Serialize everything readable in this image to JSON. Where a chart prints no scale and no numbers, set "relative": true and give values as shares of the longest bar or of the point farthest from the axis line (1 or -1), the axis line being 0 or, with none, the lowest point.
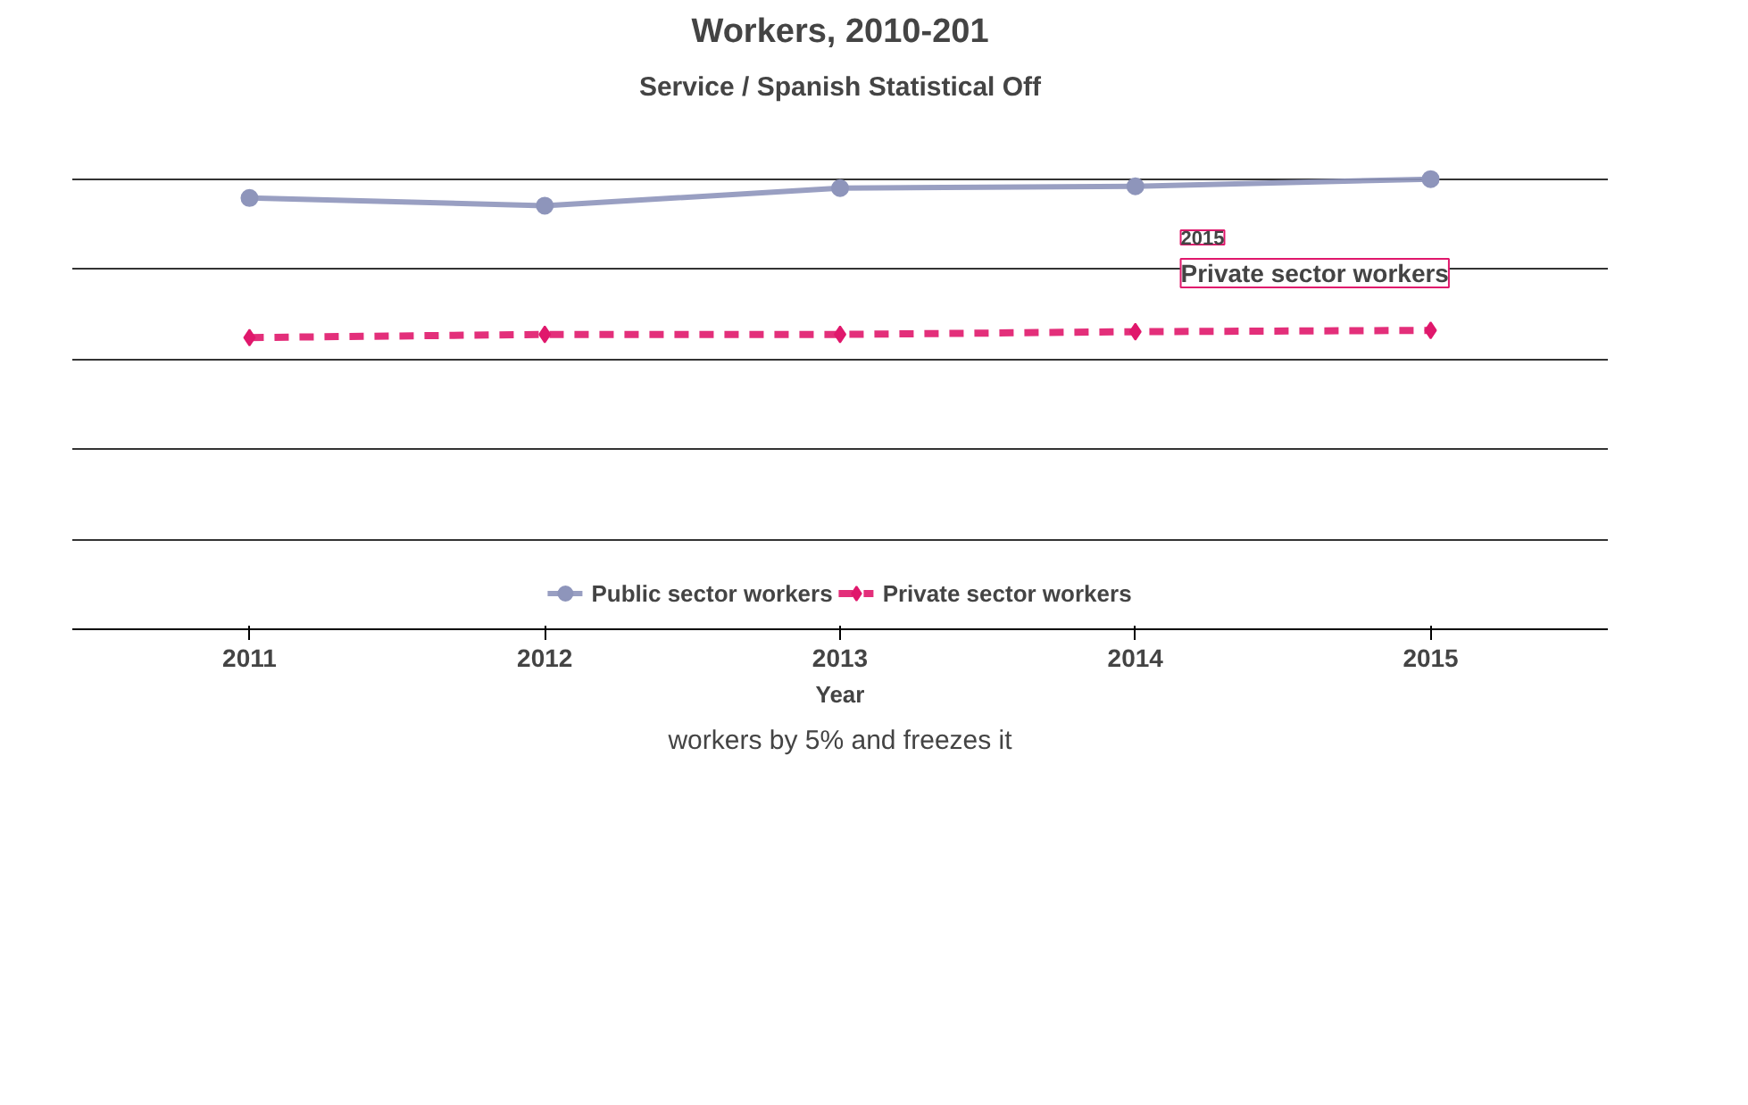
{
  "chart_data": {
    "type": "line",
    "title": "Workers, 2010-201",
    "subtitle": "Service / Spanish Statistical Off",
    "xlabel": "Year",
    "categories": [
      "2011",
      "2012",
      "2013",
      "2014",
      "2015"
    ],
    "relative": true,
    "grid": "y",
    "legend": "bottom",
    "series": [
      {
        "name": "Public sector workers",
        "color": "#8e95bb",
        "values": [
          0.958,
          0.941,
          0.98,
          0.984,
          1.0
        ],
        "marker": "circle",
        "line_style": "solid"
      },
      {
        "name": "Private sector workers",
        "color": "#e0186c",
        "values": [
          0.648,
          0.655,
          0.655,
          0.661,
          0.664
        ],
        "marker": "diamond",
        "line_style": "dashed"
      }
    ],
    "annotations": [
      {
        "text": "2015\nPrivate sector workers",
        "x": "2015",
        "y": 0.664
      },
      "workers by 5% and freezes it"
    ]
  }
}
